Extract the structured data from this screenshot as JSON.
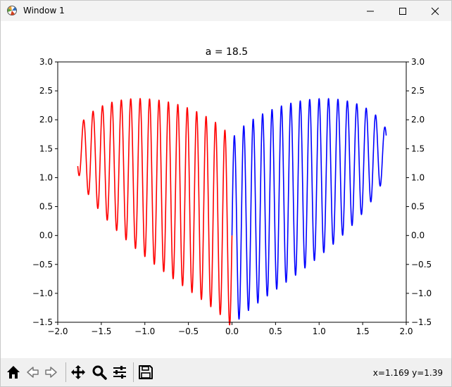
{
  "window": {
    "title": "Window 1",
    "app_icon": "matplotlib-figure-icon",
    "controls": [
      "minimize-icon",
      "maximize-icon",
      "close-icon"
    ]
  },
  "chart_data": {
    "type": "line",
    "title": "a = 18.5",
    "xlabel": "",
    "ylabel": "",
    "xlim": [
      -2.0,
      2.0
    ],
    "ylim": [
      -1.5,
      3.0
    ],
    "x_ticks": [
      "−2.0",
      "−1.5",
      "−1.0",
      "−0.5",
      "0.0",
      "0.5",
      "1.0",
      "1.5",
      "2.0"
    ],
    "y_ticks": [
      "−1.5",
      "−1.0",
      "−0.5",
      "0.0",
      "0.5",
      "1.0",
      "1.5",
      "2.0",
      "2.5",
      "3.0"
    ],
    "y_ticks_right": [
      "−1.5",
      "−1.0",
      "−0.5",
      "0.0",
      "0.5",
      "1.0",
      "1.5",
      "2.0",
      "2.5",
      "3.0"
    ],
    "grid": false,
    "legend": "none",
    "function": "y = |x|^(2/3) + 0.9*sqrt(3.3 - x^2)*sin(a*pi*x)",
    "a": 18.5,
    "series": [
      {
        "color": "#ff0000",
        "x_range": [
          -1.77,
          0.0
        ]
      },
      {
        "color": "#0000ff",
        "x_range": [
          0.0,
          1.77
        ]
      }
    ]
  },
  "toolbar": {
    "tools": [
      "home-icon",
      "back-icon",
      "forward-icon",
      "pan-icon",
      "zoom-icon",
      "configure-subplots-icon",
      "save-icon"
    ],
    "coords": "x=1.169 y=1.39"
  }
}
